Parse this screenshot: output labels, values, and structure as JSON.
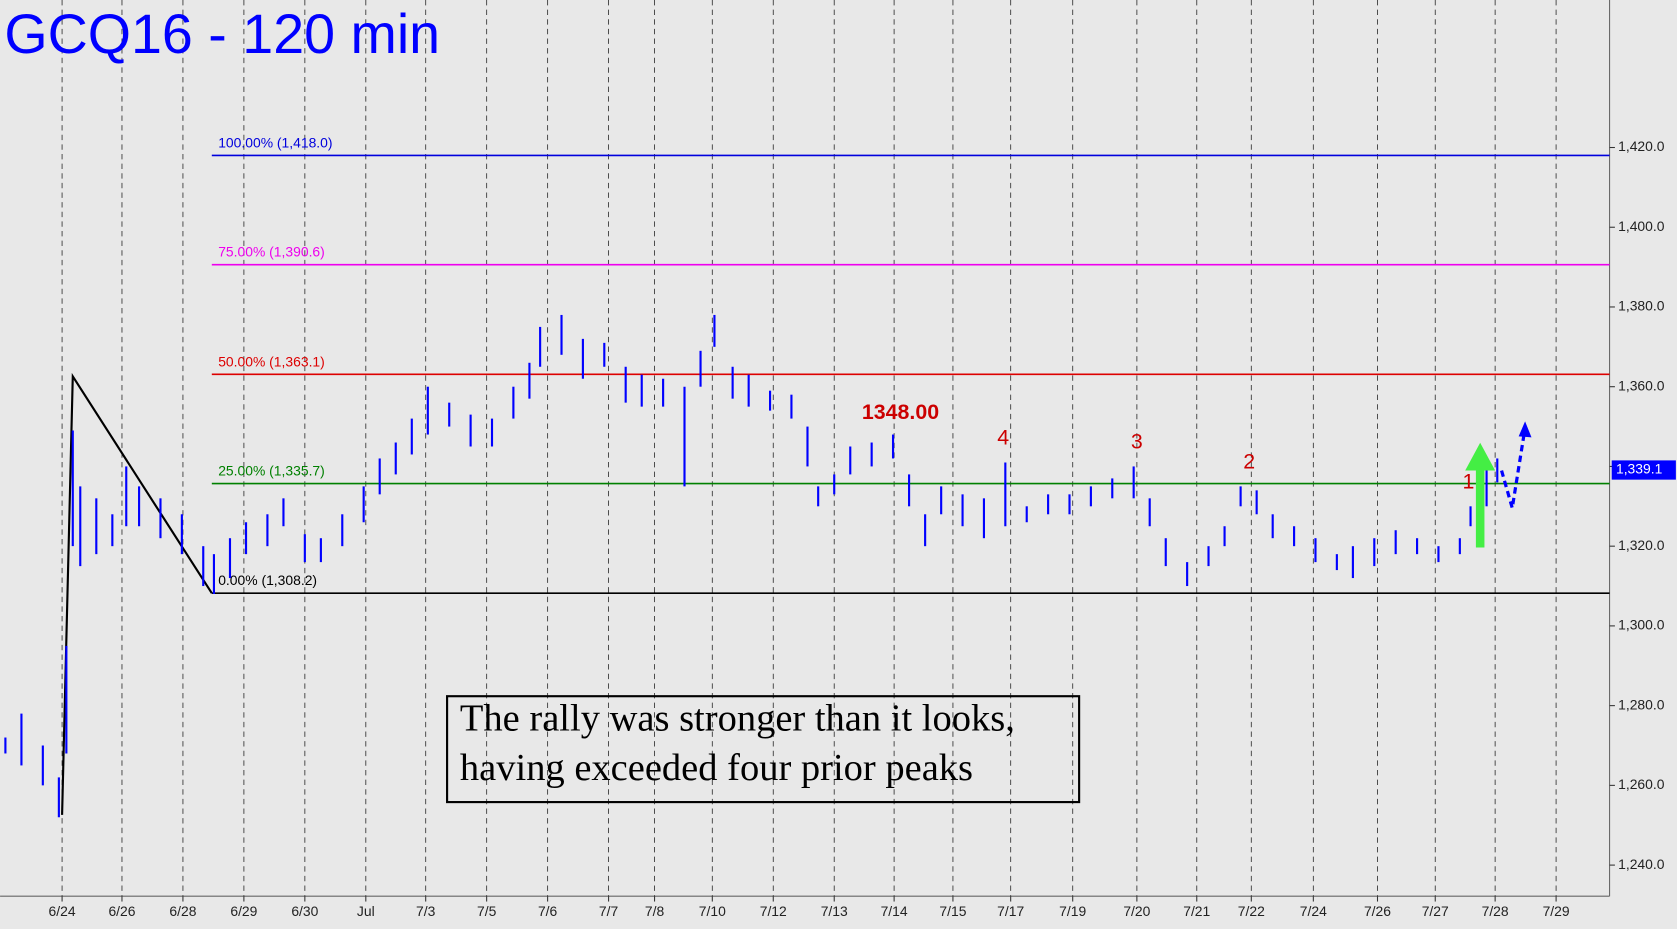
{
  "chart_data": {
    "type": "ohlc",
    "title": "GCQ16 - 120 min",
    "xlim": [
      0,
      150.5
    ],
    "ylim": [
      1232.2,
      1457.0
    ],
    "xticks": [
      {
        "value": 5.8,
        "label": "6/24"
      },
      {
        "value": 11.4,
        "label": "6/26"
      },
      {
        "value": 17.1,
        "label": "6/28"
      },
      {
        "value": 22.8,
        "label": "6/29"
      },
      {
        "value": 28.5,
        "label": "6/30"
      },
      {
        "value": 34.2,
        "label": "Jul"
      },
      {
        "value": 39.8,
        "label": "7/3"
      },
      {
        "value": 45.5,
        "label": "7/5"
      },
      {
        "value": 51.2,
        "label": "7/6"
      },
      {
        "value": 56.9,
        "label": "7/7"
      },
      {
        "value": 61.2,
        "label": "7/8"
      },
      {
        "value": 66.6,
        "label": "7/10"
      },
      {
        "value": 72.3,
        "label": "7/12"
      },
      {
        "value": 78.0,
        "label": "7/13"
      },
      {
        "value": 83.6,
        "label": "7/14"
      },
      {
        "value": 89.1,
        "label": "7/15"
      },
      {
        "value": 94.5,
        "label": "7/17"
      },
      {
        "value": 100.3,
        "label": "7/19"
      },
      {
        "value": 106.3,
        "label": "7/20"
      },
      {
        "value": 111.9,
        "label": "7/21"
      },
      {
        "value": 117.0,
        "label": "7/22"
      },
      {
        "value": 122.8,
        "label": "7/24"
      },
      {
        "value": 128.8,
        "label": "7/26"
      },
      {
        "value": 134.2,
        "label": "7/27"
      },
      {
        "value": 139.8,
        "label": "7/28"
      },
      {
        "value": 145.5,
        "label": "7/29"
      }
    ],
    "yticks": [
      {
        "value": 1240,
        "label": "1,240.0"
      },
      {
        "value": 1260,
        "label": "1,260.0"
      },
      {
        "value": 1280,
        "label": "1,280.0"
      },
      {
        "value": 1300,
        "label": "1,300.0"
      },
      {
        "value": 1320,
        "label": "1,320.0"
      },
      {
        "value": 1340,
        "label": "1,340.0"
      },
      {
        "value": 1360,
        "label": "1,360.0"
      },
      {
        "value": 1380,
        "label": "1,380.0"
      },
      {
        "value": 1400,
        "label": "1,400.0"
      },
      {
        "value": 1420,
        "label": "1,420.0"
      }
    ],
    "series": [
      {
        "color": "#0000ff",
        "x": [
          0.5,
          2.0,
          4.0,
          5.5,
          6.2,
          6.8,
          7.5,
          9.0,
          10.5,
          11.8,
          13.0,
          15.0,
          17.0,
          19.0,
          20.0,
          21.5,
          23.0,
          25.0,
          26.5,
          28.5,
          30.0,
          32.0,
          34.0,
          35.5,
          37.0,
          38.5,
          40.0,
          42.0,
          44.0,
          46.0,
          48.0,
          49.5,
          50.5,
          52.5,
          54.5,
          56.5,
          58.5,
          60.0,
          62.0,
          64.0,
          65.5,
          66.8,
          68.5,
          70.0,
          72.0,
          74.0,
          75.5,
          76.5,
          78.0,
          79.5,
          81.5,
          83.5,
          85.0,
          86.5,
          88.0,
          90.0,
          92.0,
          94.0,
          96.0,
          98.0,
          100.0,
          102.0,
          104.0,
          106.0,
          107.5,
          109.0,
          111.0,
          113.0,
          114.5,
          116.0,
          117.5,
          119.0,
          121.0,
          123.0,
          125.0,
          126.5,
          128.5,
          130.5,
          132.5,
          134.5,
          136.5,
          137.5,
          138.5,
          139.0,
          140.0
        ],
        "high": [
          1272,
          1278,
          1270,
          1262,
          1295,
          1349,
          1335,
          1332,
          1328,
          1340,
          1335,
          1332,
          1328,
          1320,
          1318,
          1322,
          1326,
          1328,
          1332,
          1323,
          1322,
          1328,
          1335,
          1342,
          1346,
          1352,
          1360,
          1356,
          1353,
          1352,
          1360,
          1366,
          1375,
          1378,
          1372,
          1371,
          1365,
          1363,
          1362,
          1360,
          1369,
          1378,
          1365,
          1363,
          1359,
          1358,
          1350,
          1335,
          1338,
          1345,
          1346,
          1348,
          1338,
          1328,
          1335,
          1333,
          1332,
          1341,
          1330,
          1333,
          1333,
          1335,
          1337,
          1340,
          1332,
          1322,
          1316,
          1320,
          1325,
          1335,
          1334,
          1328,
          1325,
          1322,
          1318,
          1320,
          1322,
          1324,
          1322,
          1320,
          1322,
          1330,
          1332,
          1342,
          1342
        ],
        "low": [
          1268,
          1265,
          1260,
          1252,
          1268,
          1320,
          1315,
          1318,
          1320,
          1325,
          1325,
          1322,
          1318,
          1310,
          1308,
          1312,
          1318,
          1320,
          1325,
          1316,
          1316,
          1320,
          1326,
          1333,
          1338,
          1343,
          1348,
          1350,
          1345,
          1345,
          1352,
          1357,
          1365,
          1368,
          1362,
          1365,
          1356,
          1355,
          1355,
          1335,
          1360,
          1370,
          1357,
          1355,
          1354,
          1352,
          1340,
          1330,
          1333,
          1338,
          1340,
          1342,
          1330,
          1320,
          1328,
          1325,
          1322,
          1325,
          1326,
          1328,
          1328,
          1330,
          1332,
          1332,
          1325,
          1315,
          1310,
          1315,
          1320,
          1330,
          1328,
          1322,
          1320,
          1316,
          1314,
          1312,
          1315,
          1318,
          1318,
          1316,
          1318,
          1325,
          1328,
          1330,
          1336
        ]
      }
    ],
    "fib_levels": [
      {
        "label": "100.00% (1,418.0)",
        "value": 1418.0,
        "color": "#0000dd"
      },
      {
        "label": "75.00% (1,390.6)",
        "value": 1390.6,
        "color": "#ee00ee"
      },
      {
        "label": "50.00% (1,363.1)",
        "value": 1363.1,
        "color": "#dd0000"
      },
      {
        "label": "25.00% (1,335.7)",
        "value": 1335.7,
        "color": "#008000"
      },
      {
        "label": "0.00% (1,308.2)",
        "value": 1308.2,
        "color": "#000000"
      }
    ],
    "trend_line": {
      "x": [
        5.8,
        6.8,
        19.8
      ],
      "y": [
        1252.6,
        1362.6,
        1308.2
      ]
    },
    "peak_label": {
      "label": "1348.00",
      "value": 1348,
      "x": 84.2
    },
    "count_labels": [
      {
        "label": "4",
        "x": 93.8,
        "y": 1341
      },
      {
        "label": "3",
        "x": 106.3,
        "y": 1340
      },
      {
        "label": "2",
        "x": 116.8,
        "y": 1335
      },
      {
        "label": "1",
        "x": 137.3,
        "y": 1330
      }
    ],
    "last_price": {
      "value": 1339.1,
      "label": "1,339.1"
    },
    "note": [
      "The rally was stronger than it looks,",
      "having exceeded four prior peaks"
    ]
  }
}
